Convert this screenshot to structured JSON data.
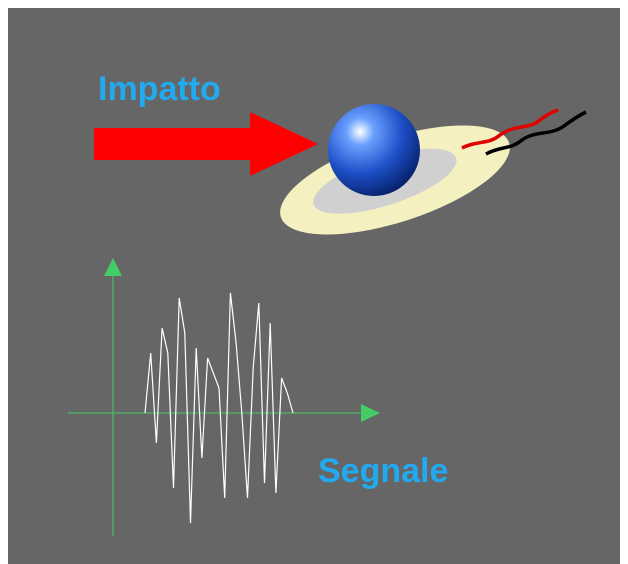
{
  "labels": {
    "impact": "Impatto",
    "signal": "Segnale"
  },
  "colors": {
    "background": "#666666",
    "label": "#22aaf0",
    "arrow": "#ff0000",
    "axis": "#44cc66",
    "signal": "#ffffff",
    "ball": "#1e50c8",
    "disc_outer": "#f5f0c0",
    "disc_inner": "#d0d0d0",
    "wire_red": "#e00000",
    "wire_black": "#000000"
  },
  "signal_trace": [
    0,
    60,
    -30,
    85,
    60,
    -75,
    115,
    80,
    -110,
    65,
    -45,
    55,
    40,
    25,
    -85,
    120,
    70,
    0,
    -85,
    45,
    110,
    -70,
    90,
    -80,
    35,
    20,
    0
  ]
}
